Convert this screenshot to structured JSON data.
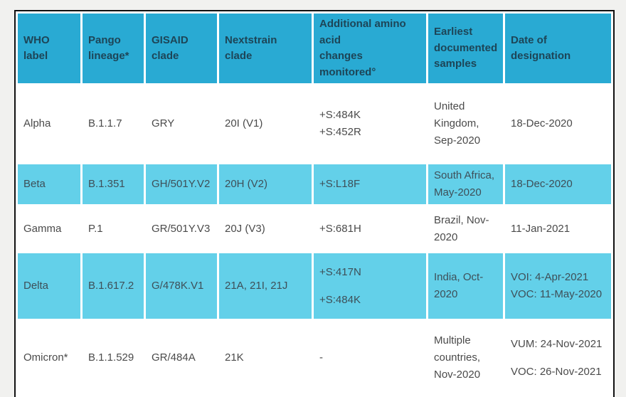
{
  "colors": {
    "page_background": "#f1f1ef",
    "table_border": "#111111",
    "header_background": "#29aad3",
    "shaded_row_background": "#63d0e9",
    "plain_row_background": "#ffffff",
    "header_text": "#1d4557",
    "body_text": "#4a4a4a"
  },
  "table": {
    "columns": [
      {
        "id": "who-label",
        "label": "WHO label"
      },
      {
        "id": "pango-lineage",
        "label": "Pango lineage*"
      },
      {
        "id": "gisaid-clade",
        "label": "GISAID clade"
      },
      {
        "id": "nextstrain-clade",
        "label": "Nextstrain clade"
      },
      {
        "id": "amino-acid-changes",
        "label": "Additional amino acid\nchanges monitored°"
      },
      {
        "id": "earliest-samples",
        "label": "Earliest documented samples"
      },
      {
        "id": "date-of-designation",
        "label": "Date of\ndesignation"
      }
    ],
    "rows": [
      {
        "id": "alpha",
        "shaded": false,
        "cells": [
          [
            "Alpha"
          ],
          [
            "B.1.1.7"
          ],
          [
            "GRY"
          ],
          [
            "20I (V1)"
          ],
          [
            "+S:484K\n+S:452R"
          ],
          [
            "United Kingdom, Sep-2020"
          ],
          [
            "18-Dec-2020"
          ]
        ]
      },
      {
        "id": "beta",
        "shaded": true,
        "cells": [
          [
            "Beta"
          ],
          [
            "B.1.351"
          ],
          [
            "GH/501Y.V2"
          ],
          [
            "20H (V2)"
          ],
          [
            "+S:L18F"
          ],
          [
            "South Africa, May-2020"
          ],
          [
            "18-Dec-2020"
          ]
        ]
      },
      {
        "id": "gamma",
        "shaded": false,
        "cells": [
          [
            "Gamma"
          ],
          [
            "P.1"
          ],
          [
            "GR/501Y.V3"
          ],
          [
            "20J (V3)"
          ],
          [
            "+S:681H"
          ],
          [
            "Brazil, Nov-2020"
          ],
          [
            "11-Jan-2021"
          ]
        ]
      },
      {
        "id": "delta",
        "shaded": true,
        "cells": [
          [
            "Delta"
          ],
          [
            "B.1.617.2"
          ],
          [
            "G/478K.V1"
          ],
          [
            "21A, 21I, 21J"
          ],
          [
            "+S:417N",
            "+S:484K"
          ],
          [
            "India, Oct-2020"
          ],
          [
            "VOI: 4-Apr-2021\nVOC: 11-May-2020"
          ]
        ]
      },
      {
        "id": "omicron",
        "shaded": false,
        "cells": [
          [
            "Omicron*"
          ],
          [
            "B.1.1.529"
          ],
          [
            "GR/484A"
          ],
          [
            "21K"
          ],
          [
            "-"
          ],
          [
            "Multiple countries, Nov-2020"
          ],
          [
            "VUM: 24-Nov-2021",
            "VOC: 26-Nov-2021"
          ]
        ]
      }
    ]
  }
}
